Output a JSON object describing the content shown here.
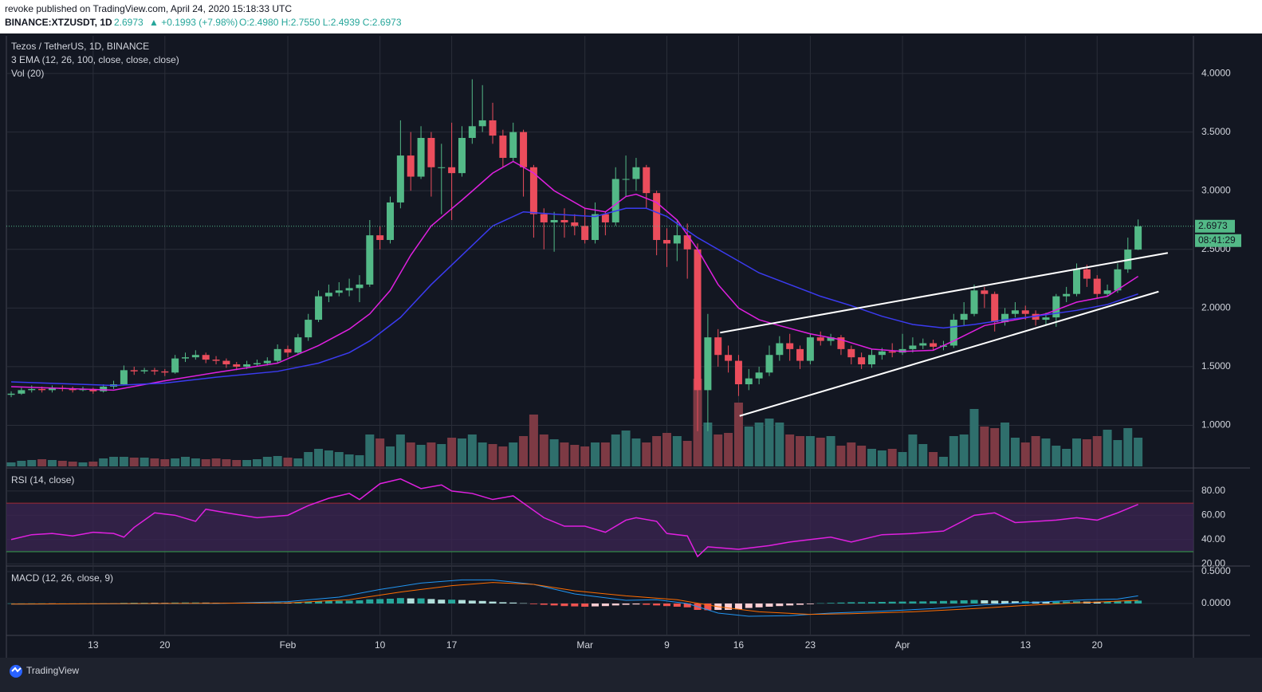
{
  "header": {
    "published": "revoke published on TradingView.com, April 24, 2020 15:18:33 UTC",
    "symbol": "BINANCE:XTZUSDT, 1D",
    "last": "2.6973",
    "change": "▲ +0.1993 (+7.98%)",
    "ohlc": "O:2.4980 H:2.7550 L:2.4939 C:2.6973"
  },
  "footer": {
    "brand": "TradingView"
  },
  "chart_data": {
    "type": "candlestick",
    "legend": [
      "Tezos / TetherUS, 1D, BINANCE",
      "3 EMA (12, 26, 100, close, close, close)",
      "Vol (20)"
    ],
    "up_color": "#53b987",
    "down_color": "#eb4d5c",
    "volume_colors": [
      "#2f6f6c",
      "#7d3a44"
    ],
    "grid": true,
    "xlim": [
      -0.47,
      115.4
    ],
    "xticks": [
      {
        "value": 8,
        "label": "13"
      },
      {
        "value": 15,
        "label": "20"
      },
      {
        "value": 27,
        "label": "Feb"
      },
      {
        "value": 36,
        "label": "10"
      },
      {
        "value": 43,
        "label": "17"
      },
      {
        "value": 56,
        "label": "Mar"
      },
      {
        "value": 64,
        "label": "9"
      },
      {
        "value": 71,
        "label": "16"
      },
      {
        "value": 78,
        "label": "23"
      },
      {
        "value": 87,
        "label": "Apr"
      },
      {
        "value": 99,
        "label": "13"
      },
      {
        "value": 106,
        "label": "20"
      }
    ],
    "ylim": [
      0.65,
      4.32
    ],
    "yticks": [
      {
        "value": 1,
        "label": "1.0000"
      },
      {
        "value": 1.5,
        "label": "1.5000"
      },
      {
        "value": 2,
        "label": "2.0000"
      },
      {
        "value": 2.5,
        "label": "2.5000"
      },
      {
        "value": 3,
        "label": "3.0000"
      },
      {
        "value": 3.5,
        "label": "3.5000"
      },
      {
        "value": 4,
        "label": "4.0000"
      }
    ],
    "countdown": "08:41:29",
    "ohlc": [
      [
        1.26,
        1.29,
        1.24,
        1.27
      ],
      [
        1.27,
        1.32,
        1.26,
        1.3
      ],
      [
        1.3,
        1.34,
        1.28,
        1.31
      ],
      [
        1.31,
        1.33,
        1.28,
        1.3
      ],
      [
        1.3,
        1.34,
        1.28,
        1.32
      ],
      [
        1.32,
        1.34,
        1.29,
        1.31
      ],
      [
        1.31,
        1.33,
        1.28,
        1.3
      ],
      [
        1.3,
        1.33,
        1.29,
        1.31
      ],
      [
        1.31,
        1.32,
        1.27,
        1.29
      ],
      [
        1.29,
        1.35,
        1.28,
        1.33
      ],
      [
        1.33,
        1.38,
        1.31,
        1.35
      ],
      [
        1.35,
        1.51,
        1.34,
        1.47
      ],
      [
        1.47,
        1.5,
        1.43,
        1.46
      ],
      [
        1.46,
        1.49,
        1.44,
        1.47
      ],
      [
        1.47,
        1.49,
        1.43,
        1.46
      ],
      [
        1.46,
        1.48,
        1.42,
        1.45
      ],
      [
        1.45,
        1.6,
        1.44,
        1.57
      ],
      [
        1.57,
        1.62,
        1.54,
        1.58
      ],
      [
        1.58,
        1.64,
        1.56,
        1.6
      ],
      [
        1.6,
        1.62,
        1.53,
        1.56
      ],
      [
        1.56,
        1.59,
        1.52,
        1.55
      ],
      [
        1.55,
        1.57,
        1.49,
        1.52
      ],
      [
        1.52,
        1.54,
        1.47,
        1.5
      ],
      [
        1.5,
        1.55,
        1.48,
        1.52
      ],
      [
        1.52,
        1.56,
        1.5,
        1.53
      ],
      [
        1.53,
        1.58,
        1.51,
        1.55
      ],
      [
        1.55,
        1.69,
        1.53,
        1.65
      ],
      [
        1.65,
        1.68,
        1.58,
        1.62
      ],
      [
        1.62,
        1.78,
        1.6,
        1.75
      ],
      [
        1.75,
        1.95,
        1.72,
        1.9
      ],
      [
        1.9,
        2.15,
        1.88,
        2.1
      ],
      [
        2.1,
        2.2,
        2.05,
        2.13
      ],
      [
        2.13,
        2.22,
        2.1,
        2.15
      ],
      [
        2.15,
        2.25,
        2.1,
        2.17
      ],
      [
        2.17,
        2.28,
        2.05,
        2.2
      ],
      [
        2.2,
        2.75,
        2.18,
        2.62
      ],
      [
        2.62,
        2.7,
        2.5,
        2.58
      ],
      [
        2.58,
        2.95,
        2.55,
        2.9
      ],
      [
        2.9,
        3.6,
        2.85,
        3.3
      ],
      [
        3.3,
        3.5,
        3.0,
        3.12
      ],
      [
        3.12,
        3.55,
        3.1,
        3.45
      ],
      [
        3.45,
        3.5,
        2.95,
        3.2
      ],
      [
        3.2,
        3.4,
        2.8,
        3.2
      ],
      [
        3.2,
        3.58,
        2.75,
        3.15
      ],
      [
        3.15,
        3.55,
        3.12,
        3.45
      ],
      [
        3.45,
        3.95,
        3.4,
        3.55
      ],
      [
        3.55,
        3.9,
        3.5,
        3.6
      ],
      [
        3.6,
        3.75,
        3.4,
        3.47
      ],
      [
        3.47,
        3.52,
        3.2,
        3.28
      ],
      [
        3.28,
        3.58,
        3.25,
        3.5
      ],
      [
        3.5,
        3.52,
        2.95,
        3.2
      ],
      [
        3.2,
        3.22,
        2.6,
        2.8
      ],
      [
        2.8,
        2.85,
        2.5,
        2.73
      ],
      [
        2.73,
        2.82,
        2.48,
        2.75
      ],
      [
        2.75,
        2.85,
        2.6,
        2.73
      ],
      [
        2.73,
        2.8,
        2.62,
        2.7
      ],
      [
        2.7,
        2.85,
        2.55,
        2.58
      ],
      [
        2.58,
        2.9,
        2.55,
        2.8
      ],
      [
        2.8,
        2.82,
        2.62,
        2.73
      ],
      [
        2.73,
        3.2,
        2.7,
        3.1
      ],
      [
        3.1,
        3.3,
        2.95,
        3.1
      ],
      [
        3.1,
        3.28,
        3.0,
        3.2
      ],
      [
        3.2,
        3.22,
        2.85,
        2.98
      ],
      [
        2.98,
        3.0,
        2.45,
        2.58
      ],
      [
        2.58,
        2.68,
        2.35,
        2.55
      ],
      [
        2.55,
        2.75,
        2.4,
        2.62
      ],
      [
        2.62,
        2.72,
        2.25,
        2.5
      ],
      [
        2.5,
        2.55,
        0.95,
        1.3
      ],
      [
        1.3,
        1.95,
        0.95,
        1.75
      ],
      [
        1.75,
        1.82,
        1.5,
        1.6
      ],
      [
        1.6,
        1.68,
        1.45,
        1.55
      ],
      [
        1.55,
        1.6,
        1.25,
        1.35
      ],
      [
        1.35,
        1.48,
        1.3,
        1.4
      ],
      [
        1.4,
        1.5,
        1.35,
        1.45
      ],
      [
        1.45,
        1.68,
        1.42,
        1.6
      ],
      [
        1.6,
        1.76,
        1.55,
        1.7
      ],
      [
        1.7,
        1.78,
        1.55,
        1.65
      ],
      [
        1.65,
        1.68,
        1.48,
        1.55
      ],
      [
        1.55,
        1.78,
        1.52,
        1.75
      ],
      [
        1.75,
        1.8,
        1.68,
        1.72
      ],
      [
        1.72,
        1.78,
        1.68,
        1.75
      ],
      [
        1.75,
        1.77,
        1.6,
        1.65
      ],
      [
        1.65,
        1.68,
        1.52,
        1.58
      ],
      [
        1.58,
        1.62,
        1.48,
        1.52
      ],
      [
        1.52,
        1.65,
        1.49,
        1.6
      ],
      [
        1.6,
        1.66,
        1.56,
        1.63
      ],
      [
        1.63,
        1.7,
        1.58,
        1.62
      ],
      [
        1.62,
        1.78,
        1.6,
        1.65
      ],
      [
        1.65,
        1.75,
        1.62,
        1.68
      ],
      [
        1.68,
        1.74,
        1.65,
        1.7
      ],
      [
        1.7,
        1.73,
        1.64,
        1.67
      ],
      [
        1.67,
        1.72,
        1.64,
        1.68
      ],
      [
        1.68,
        1.95,
        1.66,
        1.9
      ],
      [
        1.9,
        2.05,
        1.85,
        1.95
      ],
      [
        1.95,
        2.2,
        1.93,
        2.15
      ],
      [
        2.15,
        2.18,
        2.0,
        2.12
      ],
      [
        2.12,
        2.14,
        1.8,
        1.88
      ],
      [
        1.88,
        2.0,
        1.85,
        1.95
      ],
      [
        1.95,
        2.05,
        1.92,
        1.98
      ],
      [
        1.98,
        2.02,
        1.9,
        1.95
      ],
      [
        1.95,
        1.98,
        1.85,
        1.9
      ],
      [
        1.9,
        1.96,
        1.86,
        1.92
      ],
      [
        1.92,
        2.12,
        1.84,
        2.1
      ],
      [
        2.1,
        2.18,
        2.05,
        2.12
      ],
      [
        2.12,
        2.38,
        2.1,
        2.33
      ],
      [
        2.33,
        2.37,
        2.18,
        2.25
      ],
      [
        2.25,
        2.28,
        2.08,
        2.12
      ],
      [
        2.12,
        2.2,
        2.1,
        2.15
      ],
      [
        2.15,
        2.38,
        2.13,
        2.33
      ],
      [
        2.33,
        2.6,
        2.3,
        2.498
      ],
      [
        2.498,
        2.755,
        2.4939,
        2.6973
      ]
    ],
    "volume": [
      5,
      7,
      8,
      9,
      8,
      7,
      6,
      5,
      6,
      10,
      12,
      12,
      11,
      11,
      10,
      9,
      10,
      12,
      10,
      9,
      10,
      9,
      8,
      8,
      9,
      12,
      13,
      11,
      10,
      18,
      22,
      20,
      18,
      15,
      14,
      40,
      35,
      25,
      40,
      30,
      27,
      30,
      28,
      36,
      35,
      40,
      30,
      28,
      25,
      30,
      38,
      65,
      40,
      34,
      30,
      27,
      25,
      30,
      30,
      40,
      45,
      35,
      30,
      38,
      42,
      38,
      32,
      110,
      55,
      40,
      42,
      80,
      50,
      55,
      60,
      55,
      40,
      38,
      38,
      36,
      38,
      26,
      30,
      26,
      22,
      20,
      22,
      18,
      40,
      28,
      18,
      12,
      38,
      40,
      72,
      50,
      48,
      55,
      36,
      30,
      38,
      35,
      26,
      22,
      35,
      34,
      38,
      46,
      33,
      48,
      36
    ],
    "ema": [
      {
        "color": "#e020e0",
        "x": [
          0,
          10,
          15,
          20,
          26,
          30,
          33,
          35,
          37,
          39,
          41,
          44,
          47,
          49,
          51,
          53,
          56,
          58,
          60,
          61,
          63,
          65,
          67,
          69,
          71,
          73,
          75,
          78,
          81,
          84,
          87,
          90,
          92,
          95,
          98,
          101,
          104,
          107,
          110
        ],
        "values": [
          1.33,
          1.3,
          1.38,
          1.45,
          1.53,
          1.68,
          1.82,
          1.95,
          2.15,
          2.45,
          2.7,
          2.92,
          3.15,
          3.25,
          3.15,
          3.0,
          2.85,
          2.82,
          2.95,
          2.97,
          2.9,
          2.75,
          2.5,
          2.2,
          2.0,
          1.9,
          1.85,
          1.78,
          1.73,
          1.65,
          1.63,
          1.64,
          1.72,
          1.85,
          1.9,
          1.95,
          2.05,
          2.1,
          2.27
        ]
      },
      {
        "color": "#3b3bf0",
        "x": [
          0,
          10,
          15,
          20,
          26,
          30,
          33,
          35,
          38,
          41,
          44,
          47,
          50,
          53,
          57,
          60,
          62,
          64,
          67,
          70,
          73,
          76,
          79,
          82,
          85,
          88,
          91,
          94,
          97,
          100,
          104,
          107,
          110
        ],
        "values": [
          1.37,
          1.34,
          1.36,
          1.41,
          1.46,
          1.53,
          1.62,
          1.72,
          1.92,
          2.2,
          2.45,
          2.7,
          2.82,
          2.8,
          2.78,
          2.85,
          2.85,
          2.78,
          2.6,
          2.45,
          2.3,
          2.2,
          2.1,
          2.02,
          1.93,
          1.86,
          1.83,
          1.86,
          1.9,
          1.93,
          1.98,
          2.03,
          2.12
        ]
      }
    ],
    "trendline_color": "#ffffff",
    "trendlines": [
      {
        "x": [
          69.2,
          112.9
        ],
        "values": [
          1.79,
          2.47
        ]
      },
      {
        "x": [
          71.1,
          112
        ],
        "values": [
          1.08,
          2.14
        ]
      }
    ],
    "rsi": {
      "title": "RSI (14, close)",
      "color": "#e020e0",
      "ylim": [
        19.5,
        97
      ],
      "yticks": [
        {
          "value": 80,
          "label": "80.00"
        },
        {
          "value": 60,
          "label": "60.00"
        },
        {
          "value": 40,
          "label": "40.00"
        },
        {
          "value": 20,
          "label": "20.00"
        }
      ],
      "bands": [
        70,
        30
      ],
      "band_colors": [
        "#a02a35",
        "#33a34a"
      ],
      "fill_color": "#3a2450",
      "x": [
        0,
        2,
        4,
        6,
        8,
        10,
        11,
        12,
        14,
        16,
        18,
        19,
        21,
        24,
        27,
        29,
        31,
        33,
        34,
        36,
        38,
        40,
        42,
        43,
        45,
        47,
        49,
        50,
        52,
        54,
        56,
        58,
        60,
        61,
        63,
        64,
        66,
        67,
        68,
        71,
        74,
        76,
        78,
        80,
        82,
        85,
        88,
        91,
        94,
        96,
        98,
        100,
        102,
        104,
        106,
        108,
        110
      ],
      "values": [
        40,
        44,
        45,
        43,
        46,
        45,
        42,
        50,
        62,
        60,
        55,
        65,
        62,
        58,
        60,
        68,
        74,
        78,
        73,
        86,
        90,
        82,
        85,
        80,
        78,
        73,
        76,
        70,
        58,
        51,
        51,
        46,
        56,
        58,
        55,
        45,
        43,
        26,
        34,
        32,
        35,
        38,
        40,
        42,
        38,
        44,
        45,
        47,
        60,
        62,
        54,
        55,
        56,
        58,
        56,
        62,
        69
      ]
    },
    "macd": {
      "title": "MACD (12, 26, close, 9)",
      "ylim": [
        -0.475,
        0.5625
      ],
      "yticks": [
        {
          "value": 0.5,
          "label": "0.5000"
        },
        {
          "value": 0,
          "label": "0.0000"
        }
      ],
      "line": {
        "color": "#2196f3",
        "x": [
          0,
          20,
          27,
          32,
          36,
          40,
          44,
          47,
          51,
          55,
          60,
          63,
          66,
          69,
          72,
          76,
          80,
          85,
          90,
          95,
          100,
          105,
          108,
          110
        ],
        "values": [
          -0.01,
          0.0,
          0.03,
          0.1,
          0.22,
          0.32,
          0.37,
          0.37,
          0.3,
          0.15,
          0.05,
          0.06,
          0.0,
          -0.15,
          -0.2,
          -0.19,
          -0.15,
          -0.12,
          -0.08,
          -0.02,
          0.02,
          0.06,
          0.07,
          0.12
        ]
      },
      "signal": {
        "color": "#ff6d00",
        "x": [
          0,
          27,
          33,
          38,
          43,
          47,
          51,
          55,
          60,
          65,
          69,
          73,
          78,
          82,
          88,
          94,
          99,
          104,
          110
        ],
        "values": [
          -0.01,
          0.01,
          0.06,
          0.18,
          0.28,
          0.33,
          0.3,
          0.2,
          0.12,
          0.06,
          -0.05,
          -0.13,
          -0.17,
          -0.16,
          -0.13,
          -0.08,
          -0.03,
          0.01,
          0.05
        ]
      },
      "hist_colors": [
        "#26a69a",
        "#b2dfdb",
        "#ef5350",
        "#ffcdd2"
      ],
      "histogram": [
        0.002,
        0.002,
        0.003,
        0.003,
        0.002,
        0.002,
        0.002,
        0.003,
        0.003,
        0.004,
        0.005,
        0.01,
        0.012,
        0.012,
        0.011,
        0.01,
        0.015,
        0.016,
        0.016,
        0.014,
        0.012,
        0.01,
        0.008,
        0.008,
        0.008,
        0.01,
        0.015,
        0.014,
        0.02,
        0.028,
        0.035,
        0.04,
        0.042,
        0.045,
        0.05,
        0.065,
        0.07,
        0.075,
        0.085,
        0.08,
        0.08,
        0.07,
        0.06,
        0.06,
        0.055,
        0.045,
        0.04,
        0.03,
        0.02,
        0.015,
        0.005,
        -0.01,
        -0.02,
        -0.03,
        -0.04,
        -0.045,
        -0.05,
        -0.045,
        -0.04,
        -0.03,
        -0.02,
        -0.015,
        -0.02,
        -0.03,
        -0.04,
        -0.05,
        -0.06,
        -0.1,
        -0.105,
        -0.1,
        -0.1,
        -0.09,
        -0.07,
        -0.06,
        -0.05,
        -0.04,
        -0.03,
        -0.02,
        -0.01,
        0.005,
        0.01,
        0.015,
        0.02,
        0.02,
        0.022,
        0.025,
        0.028,
        0.03,
        0.032,
        0.033,
        0.035,
        0.04,
        0.045,
        0.05,
        0.055,
        0.05,
        0.045,
        0.04,
        0.035,
        0.035,
        0.03,
        0.028,
        0.03,
        0.032,
        0.035,
        0.03,
        0.028,
        0.03,
        0.035,
        0.04,
        0.045
      ]
    }
  }
}
